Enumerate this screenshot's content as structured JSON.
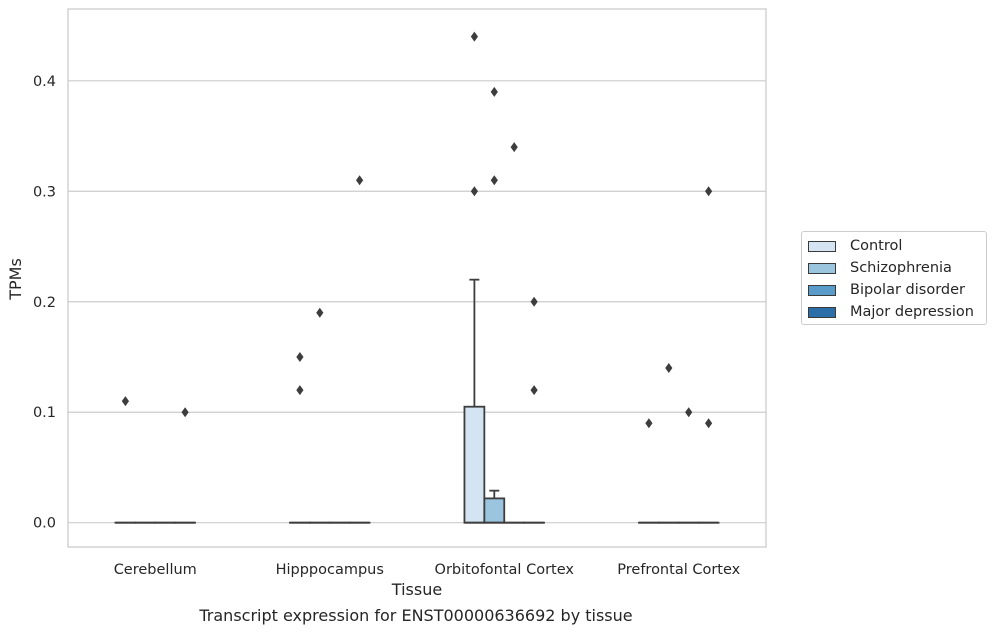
{
  "caption": "Transcript expression for ENST00000636692 by tissue",
  "colors": {
    "Control": "#d4e4f2",
    "Schizophrenia": "#9bc5df",
    "Bipolar disorder": "#5a9cc9",
    "Major depression": "#2c6ea8",
    "grid": "#cccccc",
    "line": "#3d3d3d"
  },
  "chart_data": {
    "type": "box",
    "xlabel": "Tissue",
    "ylabel": "TPMs",
    "categories": [
      "Cerebellum",
      "Hipppocampus",
      "Orbitofontal Cortex",
      "Prefrontal Cortex"
    ],
    "ylim": [
      -0.022,
      0.465
    ],
    "yticks": [
      0.0,
      0.1,
      0.2,
      0.3,
      0.4
    ],
    "ytick_labels": [
      "0.0",
      "0.1",
      "0.2",
      "0.3",
      "0.4"
    ],
    "grid": "horizontal",
    "legend_position": "right",
    "series": [
      {
        "name": "Control",
        "boxes": [
          {
            "q1": 0,
            "median": 0,
            "q3": 0,
            "whisker_low": 0,
            "whisker_high": 0,
            "outliers": [
              0.11
            ]
          },
          {
            "q1": 0,
            "median": 0,
            "q3": 0,
            "whisker_low": 0,
            "whisker_high": 0,
            "outliers": [
              0.12,
              0.15
            ]
          },
          {
            "q1": 0,
            "median": 0,
            "q3": 0.105,
            "whisker_low": 0,
            "whisker_high": 0.22,
            "outliers": [
              0.3,
              0.44
            ]
          },
          {
            "q1": 0,
            "median": 0,
            "q3": 0,
            "whisker_low": 0,
            "whisker_high": 0,
            "outliers": [
              0.09
            ]
          }
        ]
      },
      {
        "name": "Schizophrenia",
        "boxes": [
          {
            "q1": 0,
            "median": 0,
            "q3": 0,
            "whisker_low": 0,
            "whisker_high": 0,
            "outliers": []
          },
          {
            "q1": 0,
            "median": 0,
            "q3": 0,
            "whisker_low": 0,
            "whisker_high": 0,
            "outliers": [
              0.19
            ]
          },
          {
            "q1": 0,
            "median": 0,
            "q3": 0.022,
            "whisker_low": 0,
            "whisker_high": 0.029,
            "outliers": [
              0.31,
              0.39
            ]
          },
          {
            "q1": 0,
            "median": 0,
            "q3": 0,
            "whisker_low": 0,
            "whisker_high": 0,
            "outliers": [
              0.14
            ]
          }
        ]
      },
      {
        "name": "Bipolar disorder",
        "boxes": [
          {
            "q1": 0,
            "median": 0,
            "q3": 0,
            "whisker_low": 0,
            "whisker_high": 0,
            "outliers": []
          },
          {
            "q1": 0,
            "median": 0,
            "q3": 0,
            "whisker_low": 0,
            "whisker_high": 0,
            "outliers": []
          },
          {
            "q1": 0,
            "median": 0,
            "q3": 0,
            "whisker_low": 0,
            "whisker_high": 0,
            "outliers": [
              0.34
            ]
          },
          {
            "q1": 0,
            "median": 0,
            "q3": 0,
            "whisker_low": 0,
            "whisker_high": 0,
            "outliers": [
              0.1
            ]
          }
        ]
      },
      {
        "name": "Major depression",
        "boxes": [
          {
            "q1": 0,
            "median": 0,
            "q3": 0,
            "whisker_low": 0,
            "whisker_high": 0,
            "outliers": [
              0.1
            ]
          },
          {
            "q1": 0,
            "median": 0,
            "q3": 0,
            "whisker_low": 0,
            "whisker_high": 0,
            "outliers": [
              0.31
            ]
          },
          {
            "q1": 0,
            "median": 0,
            "q3": 0,
            "whisker_low": 0,
            "whisker_high": 0,
            "outliers": [
              0.12,
              0.2
            ]
          },
          {
            "q1": 0,
            "median": 0,
            "q3": 0,
            "whisker_low": 0,
            "whisker_high": 0,
            "outliers": [
              0.09,
              0.3
            ]
          }
        ]
      }
    ]
  }
}
